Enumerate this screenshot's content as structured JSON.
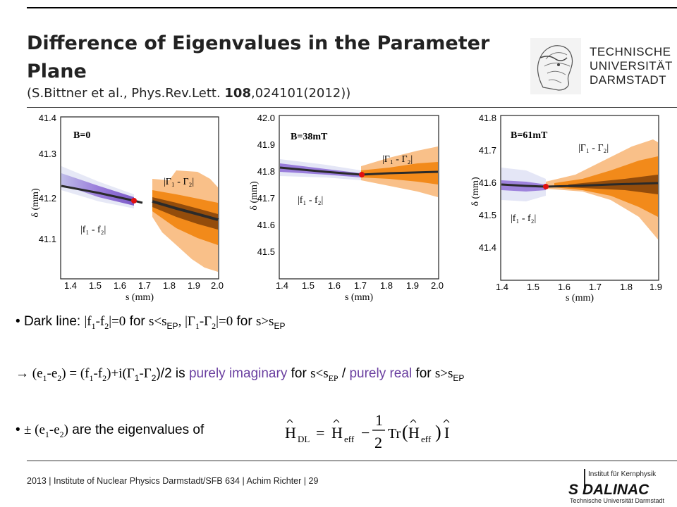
{
  "slide": {
    "title": "Difference of Eigenvalues in the Parameter Plane",
    "citation_pre": "(S.Bittner et al., Phys.Rev.Lett. ",
    "citation_vol": "108",
    "citation_post": ",024101(2012))"
  },
  "logo": {
    "text": "TECHNISCHE\nUNIVERSITÄT\nDARMSTADT"
  },
  "plots": [
    {
      "label": "B=0",
      "ylabel": "δ (mm)",
      "xlabel": "s (mm)",
      "yticks": [
        "41.4",
        "41.3",
        "41.2",
        "41.1"
      ],
      "xticks": [
        "1.4",
        "1.5",
        "1.6",
        "1.7",
        "1.8",
        "1.9",
        "2.0"
      ],
      "ann_gamma": "|Γ₁ - Γ₂|",
      "ann_f": "|f₁ - f₂|"
    },
    {
      "label": "B=38mT",
      "ylabel": "δ (mm)",
      "xlabel": "s (mm)",
      "yticks": [
        "42.0",
        "41.9",
        "41.8",
        "41.7",
        "41.6",
        "41.5"
      ],
      "xticks": [
        "1.4",
        "1.5",
        "1.6",
        "1.7",
        "1.8",
        "1.9",
        "2.0"
      ],
      "ann_gamma": "|Γ₁ - Γ₂|",
      "ann_f": "|f₁ - f₂|"
    },
    {
      "label": "B=61mT",
      "ylabel": "δ (mm)",
      "xlabel": "s (mm)",
      "yticks": [
        "41.8",
        "41.7",
        "41.6",
        "41.5",
        "41.4"
      ],
      "xticks": [
        "1.4",
        "1.5",
        "1.6",
        "1.7",
        "1.8",
        "1.9"
      ],
      "ann_gamma": "|Γ₁ - Γ₂|",
      "ann_f": "|f₁ - f₂|"
    }
  ],
  "bullets": {
    "b1_a": "Dark line: ",
    "b1_b": "|f",
    "b1_c": "-f",
    "b1_d": "|=0",
    "b1_e": " for ",
    "b1_f": "s<s",
    "b1_g": "EP",
    "b1_h": ", |Γ",
    "b1_i": "-Γ",
    "b1_j": "|=0",
    "b1_k": " for ",
    "b1_l": "s>s",
    "b1_m": "EP",
    "b2_arrow": "→ (e",
    "b2_a": "-e",
    "b2_b": ") = (f",
    "b2_c": "-f",
    "b2_d": ")+i(Γ",
    "b2_e": "-Γ",
    "b2_f": ")/2",
    "b2_g": " is ",
    "b2_h": "purely imaginary",
    "b2_i": " for ",
    "b2_j": "s<s",
    "b2_k": "EP",
    "b2_l": " / ",
    "b2_m": "purely real",
    "b2_n": " for ",
    "b2_o": "s>s",
    "b2_p": "EP",
    "b3_a": "± (e",
    "b3_b": "-e",
    "b3_c": ")",
    "b3_d": " are the eigenvalues of",
    "sub1": "1",
    "sub2": "2"
  },
  "equation": {
    "lhs": "H",
    "lhs_sub": "DL",
    "eq": "=",
    "h": "H",
    "h_sub": "eff",
    "minus": "−",
    "num": "1",
    "den": "2",
    "tr": "Tr",
    "h2": "H",
    "h2_sub": "eff",
    "i": "I"
  },
  "footer": {
    "text": "2013  |  Institute of Nuclear Physics Darmstadt/SFB 634  |  Achim Richter  |  29"
  },
  "sdalinac": {
    "line1": "Institut für Kernphysik",
    "main": "S DALINAC",
    "line2": "Technische Universität Darmstadt"
  },
  "colors": {
    "orange": "#f28a1a",
    "purple": "#7b5cc4",
    "dark": "#2a2a2a",
    "ep_marker": "#e01010"
  }
}
